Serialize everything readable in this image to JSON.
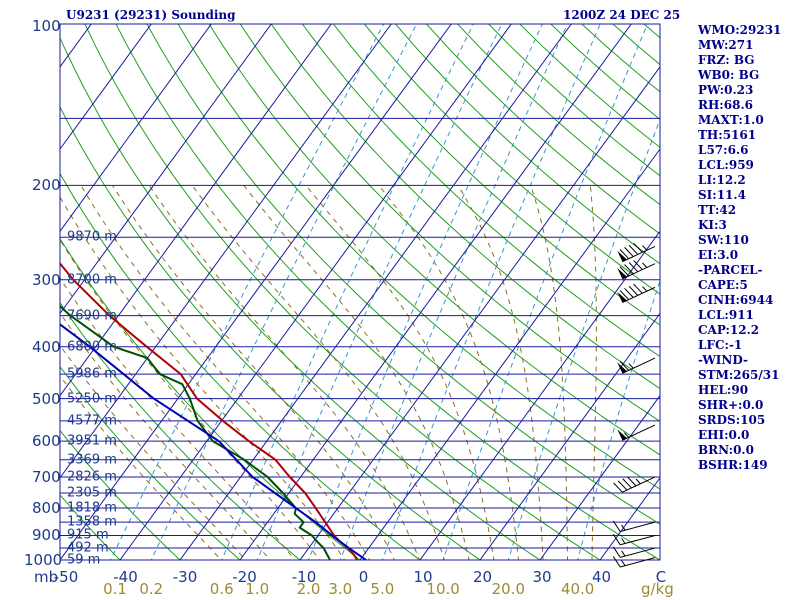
{
  "header": {
    "station": "U9231 (29231) Sounding",
    "time": "1200Z 24 DEC 25"
  },
  "params": [
    "WMO:29231",
    "MW:271",
    "FRZ: BG",
    "WB0: BG",
    "PW:0.23",
    "RH:68.6",
    "MAXT:1.0",
    "TH:5161",
    "L57:6.6",
    "LCL:959",
    "LI:12.2",
    "SI:11.4",
    "TT:42",
    "KI:3",
    "SW:110",
    "EI:3.0",
    "-PARCEL-",
    "CAPE:5",
    "CINH:6944",
    "LCL:911",
    "CAP:12.2",
    "LFC:-1",
    "-WIND-",
    "STM:265/31",
    "HEL:90",
    "SHR+:0.0",
    "SRDS:105",
    "EHI:0.0",
    "BRN:0.0",
    "BSHR:149"
  ],
  "axes": {
    "unit_label": "mb",
    "mixing_unit_label": "g/kg",
    "pressure_labels": [
      "100",
      "200",
      "300",
      "400",
      "500",
      "600",
      "700",
      "800",
      "900",
      "1000"
    ],
    "temp_labels": [
      "-50",
      "-40",
      "-30",
      "-20",
      "-10",
      "0",
      "10",
      "20",
      "30",
      "40",
      "C"
    ],
    "mixing_labels": [
      "0.1",
      "0.2",
      "0.6",
      "1.0",
      "2.0",
      "3.0",
      "5.0",
      "10.0",
      "20.0",
      "40.0"
    ]
  },
  "colors": {
    "isobar": "#1a1aa0",
    "isotherm": "#1a1aa0",
    "dry_adiabat": "#1fa01f",
    "moist_adiabat": "#8c6e1e",
    "mixing": "#3399cc",
    "temperature": "#b40000",
    "dewpoint": "#005000",
    "parcel": "#0000b4",
    "barb": "#000000"
  },
  "chart_data": {
    "type": "skew-t",
    "title": "U9231 (29231) Sounding",
    "xlabel": "Temperature (C)",
    "ylabel": "Pressure (mb)",
    "pressure_range": [
      1000,
      100
    ],
    "temperature_range_bottom": [
      -50,
      50
    ],
    "isobars": [
      1000,
      950,
      900,
      850,
      800,
      750,
      700,
      650,
      600,
      550,
      500,
      450,
      400,
      350,
      300,
      250,
      200,
      150,
      100
    ],
    "heights": [
      {
        "label": "59 m",
        "p": 1000
      },
      {
        "label": "492 m",
        "p": 950
      },
      {
        "label": "915 m",
        "p": 900
      },
      {
        "label": "1358 m",
        "p": 850
      },
      {
        "label": "1818 m",
        "p": 800
      },
      {
        "label": "2305 m",
        "p": 750
      },
      {
        "label": "2826 m",
        "p": 700
      },
      {
        "label": "3369 m",
        "p": 650
      },
      {
        "label": "3951 m",
        "p": 600
      },
      {
        "label": "4577 m",
        "p": 550
      },
      {
        "label": "5250 m",
        "p": 500
      },
      {
        "label": "5986 m",
        "p": 450
      },
      {
        "label": "6800 m",
        "p": 400
      },
      {
        "label": "7690 m",
        "p": 350
      },
      {
        "label": "8700 m",
        "p": 300
      },
      {
        "label": "9870 m",
        "p": 250
      }
    ],
    "series": [
      {
        "name": "Temperature",
        "p": [
          1000,
          980,
          950,
          925,
          900,
          850,
          800,
          750,
          700,
          650,
          600,
          550,
          500,
          450,
          400,
          350,
          300,
          250,
          200
        ],
        "t": [
          -0.5,
          -1.5,
          -3.5,
          -5.5,
          -7.3,
          -10.4,
          -13.7,
          -17.3,
          -21.8,
          -26.3,
          -33,
          -39.8,
          -46.8,
          -52.5,
          -61.5,
          -71.5,
          -81.9,
          -92.8,
          -99
        ]
      },
      {
        "name": "Dewpoint",
        "p": [
          1000,
          950,
          925,
          900,
          870,
          850,
          820,
          800,
          750,
          700,
          650,
          600,
          550,
          500,
          470,
          450,
          420,
          400,
          350,
          300,
          250,
          200
        ],
        "t": [
          -5,
          -7.5,
          -9.3,
          -11,
          -14,
          -14,
          -16.5,
          -17,
          -21,
          -25.5,
          -31.5,
          -39,
          -44,
          -48,
          -51,
          -56,
          -60,
          -67,
          -78,
          -89,
          -100,
          -115
        ]
      },
      {
        "name": "Parcel",
        "p": [
          1000,
          950,
          911,
          850,
          800,
          700,
          600,
          500,
          400,
          300,
          200,
          150,
          100
        ],
        "t": [
          1.0,
          -3.3,
          -6.7,
          -12,
          -17,
          -28,
          -38,
          -54,
          -71,
          -94,
          -121,
          -140,
          -162
        ]
      }
    ],
    "wind_barbs": [
      {
        "p": 990,
        "dir": 255,
        "spd": 15
      },
      {
        "p": 950,
        "dir": 255,
        "spd": 15
      },
      {
        "p": 900,
        "dir": 255,
        "spd": 15
      },
      {
        "p": 850,
        "dir": 255,
        "spd": 15
      },
      {
        "p": 700,
        "dir": 245,
        "spd": 45
      },
      {
        "p": 560,
        "dir": 245,
        "spd": 55
      },
      {
        "p": 420,
        "dir": 245,
        "spd": 65
      },
      {
        "p": 310,
        "dir": 245,
        "spd": 95
      },
      {
        "p": 280,
        "dir": 245,
        "spd": 95
      },
      {
        "p": 260,
        "dir": 245,
        "spd": 95
      }
    ]
  }
}
